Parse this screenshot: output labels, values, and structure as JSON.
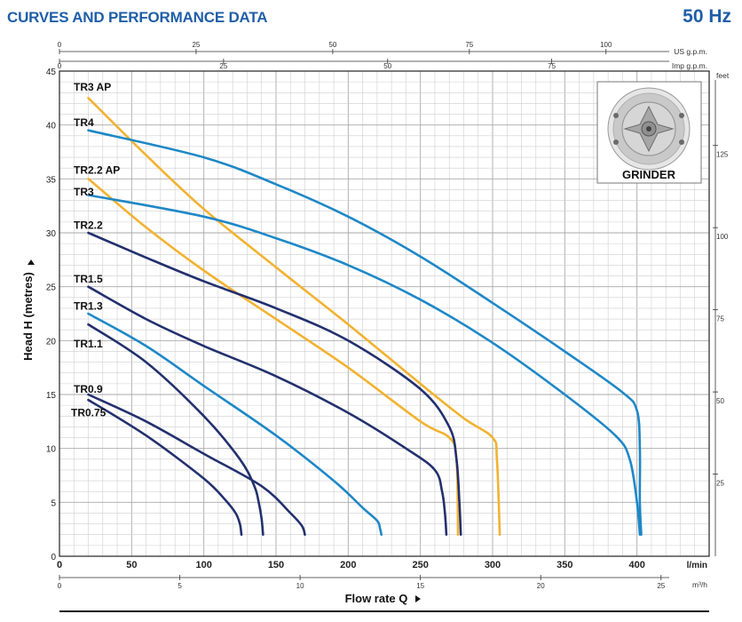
{
  "header": {
    "title": "CURVES AND PERFORMANCE DATA",
    "frequency": "50 Hz"
  },
  "inset": {
    "label": "GRINDER",
    "icon": "grinder-impeller-icon"
  },
  "colors": {
    "TR3 AP": "#f2b230",
    "TR2.2 AP": "#f2b230",
    "TR4": "#1e88c7",
    "TR3": "#1e88c7",
    "TR1.3": "#1e88c7",
    "TR2.2": "#23306e",
    "TR1.5": "#23306e",
    "TR1.1": "#23306e",
    "TR0.9": "#23306e",
    "TR0.75": "#23306e"
  },
  "chart_data": {
    "type": "line",
    "title": "",
    "xlabel": "Flow rate Q",
    "ylabel": "Head H (metres)",
    "xlim": [
      0,
      450
    ],
    "ylim": [
      0,
      45
    ],
    "x_unit": "l/min",
    "grid": true,
    "x_ticks": [
      0,
      50,
      100,
      150,
      200,
      250,
      300,
      350,
      400
    ],
    "y_ticks": [
      0,
      5,
      10,
      15,
      20,
      25,
      30,
      35,
      40,
      45
    ],
    "secondary_axes": {
      "top_usgpm": {
        "unit": "US g.p.m.",
        "ticks": [
          0,
          25,
          50,
          75,
          100
        ]
      },
      "top_impgpm": {
        "unit": "Imp g.p.m.",
        "ticks": [
          0,
          25,
          50,
          75
        ]
      },
      "bottom_m3h": {
        "unit": "m³/h",
        "ticks": [
          0,
          5,
          10,
          15,
          20,
          25
        ]
      },
      "right_feet": {
        "unit": "feet",
        "ticks": [
          25,
          50,
          75,
          100,
          125
        ]
      }
    },
    "series": [
      {
        "name": "TR3 AP",
        "x": [
          20,
          60,
          100,
          150,
          200,
          250,
          280,
          300,
          303,
          305
        ],
        "y": [
          42.5,
          37.2,
          32.2,
          26.8,
          21.5,
          16,
          12.8,
          11,
          9,
          2
        ]
      },
      {
        "name": "TR4",
        "x": [
          20,
          100,
          150,
          200,
          250,
          300,
          350,
          390,
          400,
          402,
          402,
          403
        ],
        "y": [
          39.5,
          37,
          34.5,
          31.5,
          27.8,
          23.5,
          19,
          15.2,
          13.5,
          10,
          5,
          2
        ]
      },
      {
        "name": "TR2.2 AP",
        "x": [
          20,
          60,
          100,
          150,
          200,
          250,
          270,
          275,
          276
        ],
        "y": [
          35,
          30.5,
          26.5,
          22,
          17.5,
          12.5,
          11,
          9,
          2
        ]
      },
      {
        "name": "TR3",
        "x": [
          20,
          100,
          150,
          200,
          250,
          300,
          350,
          385,
          395,
          400,
          402
        ],
        "y": [
          33.5,
          31.5,
          29.5,
          27,
          23.8,
          19.8,
          15,
          11.2,
          9,
          5,
          2
        ]
      },
      {
        "name": "TR2.2",
        "x": [
          20,
          60,
          100,
          150,
          200,
          250,
          270,
          275,
          277,
          278
        ],
        "y": [
          30,
          27.7,
          25.5,
          23,
          20,
          15.5,
          12,
          9,
          5,
          2
        ]
      },
      {
        "name": "TR1.5",
        "x": [
          20,
          60,
          100,
          150,
          200,
          240,
          260,
          265,
          267,
          268
        ],
        "y": [
          25,
          22,
          19.5,
          16.7,
          13.3,
          10,
          8,
          6,
          4,
          2
        ]
      },
      {
        "name": "TR1.3",
        "x": [
          20,
          60,
          100,
          150,
          190,
          210,
          220,
          222,
          223
        ],
        "y": [
          22.5,
          19.5,
          15.8,
          11.2,
          7,
          4.5,
          3.3,
          2.6,
          2
        ]
      },
      {
        "name": "TR1.1",
        "x": [
          20,
          60,
          100,
          125,
          135,
          138,
          140,
          141
        ],
        "y": [
          21.5,
          18,
          13,
          9,
          6.5,
          5,
          3.5,
          2
        ]
      },
      {
        "name": "TR0.9",
        "x": [
          20,
          60,
          100,
          140,
          160,
          168,
          170
        ],
        "y": [
          15,
          12.5,
          9.5,
          6.5,
          4,
          2.8,
          2
        ]
      },
      {
        "name": "TR0.75",
        "x": [
          20,
          60,
          100,
          115,
          122,
          125,
          126
        ],
        "y": [
          14.5,
          11.2,
          7.2,
          5.2,
          4,
          3,
          2
        ]
      }
    ],
    "labels": [
      {
        "name": "TR3 AP",
        "text": "TR3 AP",
        "y": 43.5
      },
      {
        "name": "TR4",
        "text": "TR4",
        "y": 40.2
      },
      {
        "name": "TR2.2 AP",
        "text": "TR2.2 AP",
        "y": 35.8
      },
      {
        "name": "TR3",
        "text": "TR3",
        "y": 33.8
      },
      {
        "name": "TR2.2",
        "text": "TR2.2",
        "y": 30.7
      },
      {
        "name": "TR1.5",
        "text": "TR1.5",
        "y": 25.7
      },
      {
        "name": "TR1.3",
        "text": "TR1.3",
        "y": 23.2
      },
      {
        "name": "TR1.1",
        "text": "TR1.1",
        "y": 19.7
      },
      {
        "name": "TR0.9",
        "text": "TR0.9",
        "y": 15.5
      },
      {
        "name": "TR0.75",
        "text": "TR0.75",
        "y": 13.3
      }
    ]
  }
}
